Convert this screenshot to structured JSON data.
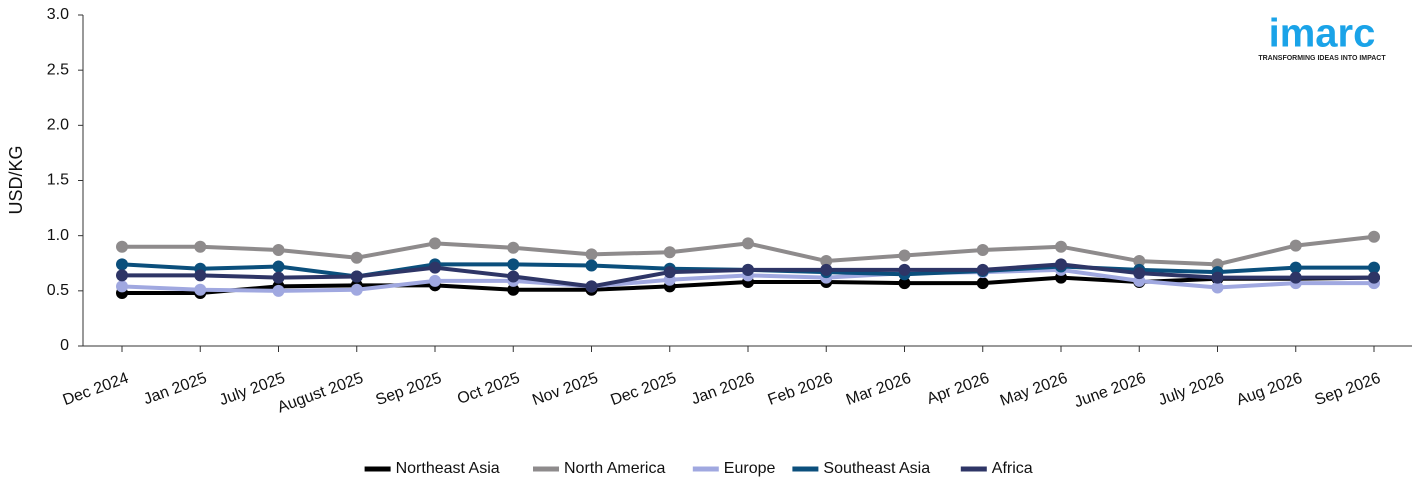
{
  "chart_data": {
    "type": "line",
    "y_label": "USD/KG",
    "categories": [
      "Dec 2024",
      "Jan 2025",
      "July 2025",
      "August 2025",
      "Sep 2025",
      "Oct 2025",
      "Nov 2025",
      "Dec 2025",
      "Jan 2026",
      "Feb 2026",
      "Mar 2026",
      "Apr 2026",
      "May 2026",
      "June 2026",
      "July 2026",
      "Aug 2026",
      "Sep 2026"
    ],
    "series": [
      {
        "name": "Northeast Asia",
        "color": "#000000",
        "values": [
          0.48,
          0.48,
          0.54,
          0.55,
          0.55,
          0.51,
          0.51,
          0.54,
          0.58,
          0.58,
          0.57,
          0.57,
          0.62,
          0.58,
          0.61,
          0.61,
          0.62
        ]
      },
      {
        "name": "North America",
        "color": "#8e8b8c",
        "values": [
          0.9,
          0.9,
          0.87,
          0.8,
          0.93,
          0.89,
          0.83,
          0.85,
          0.93,
          0.77,
          0.82,
          0.87,
          0.9,
          0.77,
          0.74,
          0.91,
          0.99
        ]
      },
      {
        "name": "Europe",
        "color": "#a0a8e0",
        "values": [
          0.54,
          0.51,
          0.5,
          0.51,
          0.59,
          0.59,
          0.54,
          0.6,
          0.64,
          0.62,
          0.66,
          0.67,
          0.69,
          0.59,
          0.53,
          0.57,
          0.57
        ]
      },
      {
        "name": "Southeast Asia",
        "color": "#0b4f7c",
        "values": [
          0.74,
          0.7,
          0.72,
          0.63,
          0.74,
          0.74,
          0.73,
          0.7,
          0.69,
          0.67,
          0.65,
          0.68,
          0.72,
          0.69,
          0.67,
          0.71,
          0.71
        ]
      },
      {
        "name": "Africa",
        "color": "#2e3566",
        "values": [
          0.64,
          0.64,
          0.62,
          0.63,
          0.71,
          0.63,
          0.54,
          0.67,
          0.69,
          0.69,
          0.69,
          0.69,
          0.74,
          0.66,
          0.62,
          0.62,
          0.62
        ]
      }
    ],
    "ylim": [
      0,
      3
    ],
    "yticks": [
      0,
      0.5,
      {
        "value": 1,
        "label": "1.0"
      },
      1.5,
      {
        "value": 2,
        "label": "2.0"
      },
      2.5,
      {
        "value": 3,
        "label": "3.0"
      }
    ],
    "grid": false,
    "legend": "bottom"
  },
  "logo": {
    "name": "imarc",
    "tagline": "TRANSFORMING IDEAS INTO IMPACT"
  }
}
